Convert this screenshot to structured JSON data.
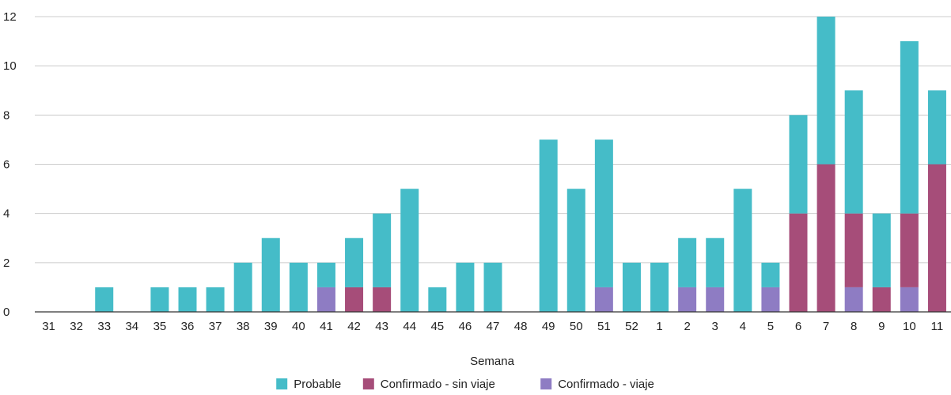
{
  "chart_data": {
    "type": "bar",
    "stacked": true,
    "xlabel": "Semana",
    "ylabel": "",
    "ylim": [
      0,
      12
    ],
    "yticks": [
      0,
      2,
      4,
      6,
      8,
      10,
      12
    ],
    "grid": true,
    "legend_position": "bottom",
    "categories": [
      "31",
      "32",
      "33",
      "34",
      "35",
      "36",
      "37",
      "38",
      "39",
      "40",
      "41",
      "42",
      "43",
      "44",
      "45",
      "46",
      "47",
      "48",
      "49",
      "50",
      "51",
      "52",
      "1",
      "2",
      "3",
      "4",
      "5",
      "6",
      "7",
      "8",
      "9",
      "10",
      "11"
    ],
    "series": [
      {
        "name": "Confirmado - viaje",
        "color": "#8e7cc3",
        "values": [
          0,
          0,
          0,
          0,
          0,
          0,
          0,
          0,
          0,
          0,
          1,
          0,
          0,
          0,
          0,
          0,
          0,
          0,
          0,
          0,
          1,
          0,
          0,
          1,
          1,
          0,
          1,
          0,
          0,
          1,
          0,
          1,
          0
        ]
      },
      {
        "name": "Confirmado - sin viaje",
        "color": "#a64d79",
        "values": [
          0,
          0,
          0,
          0,
          0,
          0,
          0,
          0,
          0,
          0,
          0,
          1,
          1,
          0,
          0,
          0,
          0,
          0,
          0,
          0,
          0,
          0,
          0,
          0,
          0,
          0,
          0,
          4,
          6,
          3,
          1,
          3,
          6
        ]
      },
      {
        "name": "Probable",
        "color": "#45bcc8",
        "values": [
          0,
          0,
          1,
          0,
          1,
          1,
          1,
          2,
          3,
          2,
          1,
          2,
          3,
          5,
          1,
          2,
          2,
          0,
          7,
          5,
          6,
          2,
          2,
          2,
          2,
          5,
          1,
          4,
          6,
          5,
          3,
          7,
          3
        ]
      }
    ],
    "legend_order": [
      "Probable",
      "Confirmado - sin viaje",
      "Confirmado - viaje"
    ]
  }
}
